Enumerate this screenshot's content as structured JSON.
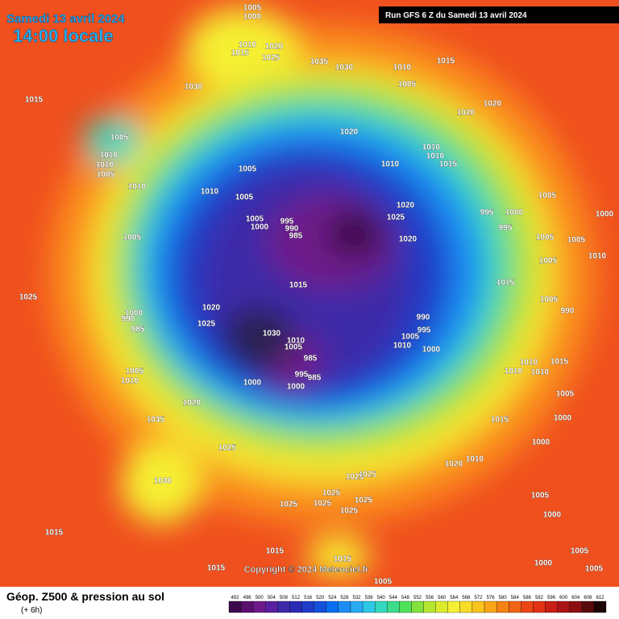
{
  "header": {
    "date": "Samedi 13 avril 2024",
    "time": "14:00 locale",
    "run": "Run GFS 6 Z du Samedi 13 avril 2024"
  },
  "copyright": "Copyright © 2024 Meteociel.fr",
  "footer": {
    "title": "Géop. Z500 & pression au sol",
    "step": "(+ 6h)"
  },
  "scale": {
    "values": [
      492,
      496,
      500,
      504,
      508,
      512,
      516,
      520,
      524,
      528,
      532,
      536,
      540,
      544,
      548,
      552,
      556,
      560,
      564,
      568,
      572,
      576,
      580,
      584,
      588,
      592,
      596,
      600,
      604,
      608,
      612
    ],
    "colors": [
      "#3c0a4a",
      "#5a0f6e",
      "#6e1a8a",
      "#5a1fa0",
      "#3c2aa8",
      "#2a2ab4",
      "#1e3cc8",
      "#1450dc",
      "#0a6ef0",
      "#1e8cf5",
      "#28aaf5",
      "#2dc8e6",
      "#32d7be",
      "#3cdc8c",
      "#50e15a",
      "#82e13c",
      "#b4e632",
      "#dceb2d",
      "#f5f032",
      "#fadc28",
      "#fac31e",
      "#faa519",
      "#f58214",
      "#f06414",
      "#eb4614",
      "#e13214",
      "#c81e14",
      "#aa1414",
      "#8c0f0f",
      "#5a0a0a",
      "#1e0505"
    ]
  },
  "pressure_labels": [
    1005,
    1000,
    1010,
    1015,
    1020,
    1025,
    1035,
    1030,
    1010,
    1015,
    1005,
    1030,
    1015,
    1020,
    1020,
    1020,
    1005,
    1010,
    1010,
    1005,
    1010,
    1010,
    1015,
    1010,
    1005,
    1010,
    1010,
    1005,
    1005,
    995,
    1000,
    1020,
    1025,
    1005,
    1000,
    995,
    990,
    985,
    995,
    1000,
    1005,
    1020,
    1005,
    1005,
    1010,
    1005,
    1015,
    1015,
    1025,
    1000,
    990,
    985,
    1020,
    1025,
    1005,
    990,
    990,
    995,
    1005,
    1010,
    1000,
    1030,
    1005,
    1010,
    985,
    995,
    985,
    1000,
    1000,
    1005,
    1010,
    1020,
    1010,
    1010,
    1010,
    1015,
    1005,
    1015,
    1000,
    1000,
    1035,
    1025,
    1020,
    1010,
    1030,
    1025,
    1025,
    1025,
    1025,
    1025,
    1025,
    1025,
    1005,
    1000,
    1015,
    1015,
    1015,
    1005,
    1000,
    1015,
    1005,
    1005
  ]
}
